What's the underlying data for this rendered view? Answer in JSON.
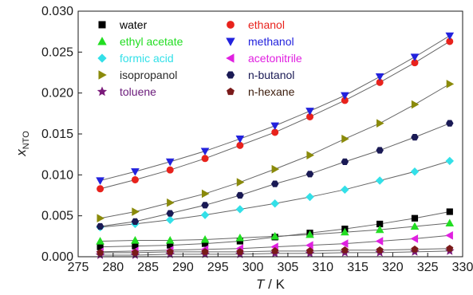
{
  "chart_data": {
    "type": "scatter",
    "xlabel": "T / K",
    "xlabel_italic": "T",
    "xlabel_rest": " / K",
    "ylabel_main": "x",
    "ylabel_sub": "NTO",
    "xlim": [
      275,
      330
    ],
    "ylim": [
      0.0,
      0.03
    ],
    "x_ticks": [
      "275",
      "280",
      "285",
      "290",
      "295",
      "300",
      "305",
      "310",
      "315",
      "320",
      "325",
      "330"
    ],
    "y_ticks": [
      "0.000",
      "0.005",
      "0.010",
      "0.015",
      "0.020",
      "0.025",
      "0.030"
    ],
    "x": [
      278.15,
      283.15,
      288.15,
      293.15,
      298.15,
      303.15,
      308.15,
      313.15,
      318.15,
      323.15,
      328.15
    ],
    "legend_position": "top-left",
    "series": [
      {
        "name": "water",
        "marker": "square",
        "color": "#000000",
        "text_color": "#000000",
        "values": [
          0.0012,
          0.0013,
          0.0014,
          0.0016,
          0.0019,
          0.0024,
          0.0029,
          0.0034,
          0.004,
          0.0047,
          0.0055
        ]
      },
      {
        "name": "ethanol",
        "marker": "circle",
        "color": "#e8221c",
        "text_color": "#e8221c",
        "values": [
          0.0083,
          0.0094,
          0.0106,
          0.012,
          0.0136,
          0.0152,
          0.0171,
          0.0191,
          0.0213,
          0.0237,
          0.0263
        ]
      },
      {
        "name": "ethyl acetate",
        "marker": "triangle-up",
        "color": "#22dd22",
        "text_color": "#22dd22",
        "values": [
          0.0019,
          0.002,
          0.002,
          0.0021,
          0.0023,
          0.0025,
          0.0027,
          0.003,
          0.0033,
          0.0037,
          0.0041
        ]
      },
      {
        "name": "methanol",
        "marker": "triangle-down",
        "color": "#2222dd",
        "text_color": "#2222dd",
        "values": [
          0.0093,
          0.0104,
          0.0116,
          0.0129,
          0.0144,
          0.016,
          0.0178,
          0.0197,
          0.022,
          0.0244,
          0.027
        ]
      },
      {
        "name": "formic acid",
        "marker": "diamond",
        "color": "#33e0e8",
        "text_color": "#33e0e8",
        "values": [
          0.0036,
          0.004,
          0.0045,
          0.0051,
          0.0058,
          0.0065,
          0.0073,
          0.0082,
          0.0093,
          0.0104,
          0.0117
        ]
      },
      {
        "name": "acetonitrile",
        "marker": "triangle-left",
        "color": "#e020e0",
        "text_color": "#e020e0",
        "values": [
          0.0006,
          0.0007,
          0.0008,
          0.0009,
          0.001,
          0.0012,
          0.0014,
          0.0016,
          0.0019,
          0.0022,
          0.0026
        ]
      },
      {
        "name": "isopropanol",
        "marker": "triangle-right",
        "color": "#8a8a0a",
        "text_color": "#2a2a2a",
        "values": [
          0.0047,
          0.0055,
          0.0066,
          0.0077,
          0.0091,
          0.0107,
          0.0124,
          0.0144,
          0.0163,
          0.0186,
          0.0211
        ]
      },
      {
        "name": "n-butanol",
        "marker": "hexagon",
        "color": "#1a1a55",
        "text_color": "#1a1a55",
        "values": [
          0.0037,
          0.0043,
          0.0053,
          0.0063,
          0.0075,
          0.0089,
          0.0101,
          0.0116,
          0.013,
          0.0146,
          0.0163
        ]
      },
      {
        "name": "toluene",
        "marker": "star",
        "color": "#7a1a7a",
        "text_color": "#6a1a7a",
        "values": [
          0.0002,
          0.0002,
          0.0003,
          0.0003,
          0.0003,
          0.0004,
          0.0004,
          0.0005,
          0.0005,
          0.0006,
          0.0007
        ]
      },
      {
        "name": "n-hexane",
        "marker": "pentagon",
        "color": "#7a1a1a",
        "text_color": "#3a1a0a",
        "values": [
          0.0005,
          0.0005,
          0.0006,
          0.0006,
          0.0006,
          0.0007,
          0.0007,
          0.0008,
          0.0008,
          0.0009,
          0.001
        ]
      }
    ]
  }
}
